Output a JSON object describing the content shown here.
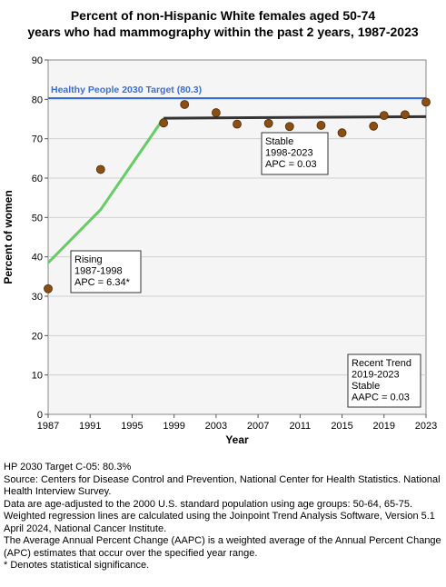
{
  "chart_data": {
    "type": "scatter",
    "title_lines": [
      "Percent of non-Hispanic White females aged 50-74",
      "years who had mammography within the past 2 years, 1987-2023"
    ],
    "xlabel": "Year",
    "ylabel": "Percent of women",
    "xlim": [
      1987,
      2023
    ],
    "ylim": [
      0,
      90
    ],
    "x_ticks": [
      1987,
      1991,
      1995,
      1999,
      2003,
      2007,
      2011,
      2015,
      2019,
      2023
    ],
    "y_ticks": [
      0,
      10,
      20,
      30,
      40,
      50,
      60,
      70,
      80,
      90
    ],
    "grid": "horizontal",
    "points": [
      {
        "x": 1987,
        "y": 31.9
      },
      {
        "x": 1992,
        "y": 62.2
      },
      {
        "x": 1998,
        "y": 74.0
      },
      {
        "x": 2000,
        "y": 78.7
      },
      {
        "x": 2003,
        "y": 76.6
      },
      {
        "x": 2005,
        "y": 73.7
      },
      {
        "x": 2008,
        "y": 73.9
      },
      {
        "x": 2010,
        "y": 73.1
      },
      {
        "x": 2013,
        "y": 73.4
      },
      {
        "x": 2015,
        "y": 71.5
      },
      {
        "x": 2018,
        "y": 73.2
      },
      {
        "x": 2019,
        "y": 75.9
      },
      {
        "x": 2021,
        "y": 76.1
      },
      {
        "x": 2023,
        "y": 79.3
      }
    ],
    "trend_segments": [
      {
        "points": [
          [
            1987,
            38.5
          ],
          [
            1992,
            52.0
          ],
          [
            1998,
            75.2
          ]
        ],
        "color": "#66cc66"
      },
      {
        "points": [
          [
            1998,
            75.2
          ],
          [
            2023,
            75.6
          ]
        ],
        "color": "#333333"
      }
    ],
    "target": {
      "value": 80.3,
      "label": "Healthy People 2030 Target (80.3)",
      "color": "#3a6fd8"
    },
    "point_color": "#8b4f13",
    "annotations": [
      {
        "lines": [
          "Rising",
          "1987-1998",
          "APC =  6.34*"
        ]
      },
      {
        "lines": [
          "Stable",
          "1998-2023",
          "APC =  0.03"
        ]
      },
      {
        "lines": [
          "Recent Trend",
          "2019-2023",
          "Stable",
          "AAPC =  0.03"
        ]
      }
    ]
  },
  "notes": [
    "HP 2030 Target C-05: 80.3%",
    "Source: Centers for Disease Control and Prevention, National Center for Health Statistics. National Health Interview Survey.",
    "Data are age-adjusted to the 2000 U.S. standard population using age groups: 50-64, 65-75.",
    "Weighted regression lines are calculated using the Joinpoint Trend Analysis Software, Version 5.1 April 2024, National Cancer Institute.",
    "The Average Annual Percent Change (AAPC) is a weighted average of the Annual Percent Change (APC) estimates that occur over the specified year range.",
    "* Denotes statistical significance."
  ]
}
